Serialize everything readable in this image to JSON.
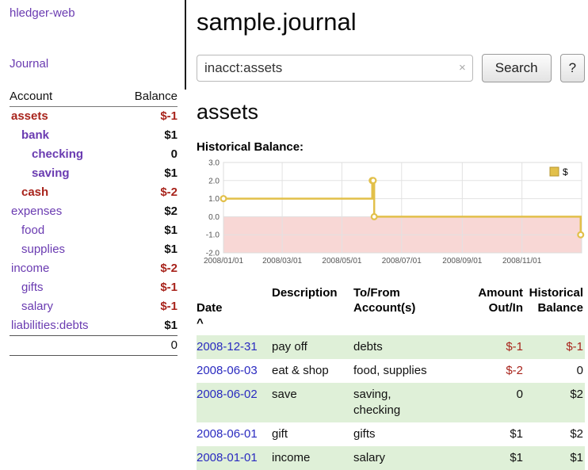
{
  "app": {
    "title": "hledger-web",
    "nav_journal": "Journal"
  },
  "sidebar": {
    "header": {
      "account": "Account",
      "balance": "Balance"
    },
    "accounts": [
      {
        "name": "assets",
        "balance": "$-1",
        "indent": 0,
        "bold": true,
        "neg": true,
        "neg_name": true
      },
      {
        "name": "bank",
        "balance": "$1",
        "indent": 1,
        "bold": true,
        "neg": false,
        "neg_name": false
      },
      {
        "name": "checking",
        "balance": "0",
        "indent": 2,
        "bold": true,
        "neg": false,
        "neg_name": false
      },
      {
        "name": "saving",
        "balance": "$1",
        "indent": 2,
        "bold": true,
        "neg": false,
        "neg_name": false
      },
      {
        "name": "cash",
        "balance": "$-2",
        "indent": 1,
        "bold": true,
        "neg": true,
        "neg_name": true
      },
      {
        "name": "expenses",
        "balance": "$2",
        "indent": 0,
        "bold": false,
        "neg": false,
        "neg_name": false
      },
      {
        "name": "food",
        "balance": "$1",
        "indent": 1,
        "bold": false,
        "neg": false,
        "neg_name": false
      },
      {
        "name": "supplies",
        "balance": "$1",
        "indent": 1,
        "bold": false,
        "neg": false,
        "neg_name": false
      },
      {
        "name": "income",
        "balance": "$-2",
        "indent": 0,
        "bold": false,
        "neg": true,
        "neg_name": false
      },
      {
        "name": "gifts",
        "balance": "$-1",
        "indent": 1,
        "bold": false,
        "neg": true,
        "neg_name": false
      },
      {
        "name": "salary",
        "balance": "$-1",
        "indent": 1,
        "bold": false,
        "neg": true,
        "neg_name": false
      },
      {
        "name": "liabilities:debts",
        "balance": "$1",
        "indent": 0,
        "bold": false,
        "neg": false,
        "neg_name": false
      }
    ],
    "total": "0"
  },
  "header": {
    "title": "sample.journal"
  },
  "search": {
    "value": "inacct:assets",
    "clear_icon": "×",
    "button": "Search",
    "help": "?"
  },
  "account_page": {
    "heading": "assets",
    "chart_label": "Historical Balance:"
  },
  "chart_data": {
    "type": "line",
    "step": true,
    "title": "Historical Balance",
    "xlabel": "",
    "ylabel": "",
    "x_range": [
      "2008/01/01",
      "2009/01/01"
    ],
    "ylim": [
      -2,
      3
    ],
    "yticks": [
      3,
      2,
      1,
      0,
      -1,
      -2
    ],
    "xticks": [
      "2008/01/01",
      "2008/03/01",
      "2008/05/01",
      "2008/07/01",
      "2008/09/01",
      "2008/11/01"
    ],
    "grid": true,
    "legend_position": "top-right",
    "negative_region_fill": "#f8d7d5",
    "series": [
      {
        "name": "$",
        "color": "#e2c04a",
        "points": [
          [
            "2008-01-01",
            1
          ],
          [
            "2008-06-01",
            2
          ],
          [
            "2008-06-02",
            2
          ],
          [
            "2008-06-03",
            0
          ],
          [
            "2008-12-31",
            -1
          ]
        ]
      }
    ]
  },
  "register": {
    "sort_indicator": "^",
    "columns": {
      "date": "Date",
      "description": "Description",
      "account": "To/From\nAccount(s)",
      "amount": "Amount\nOut/In",
      "balance": "Historical\nBalance"
    },
    "rows": [
      {
        "date": "2008-12-31",
        "description": "pay off",
        "account": "debts",
        "amount": "$-1",
        "balance": "$-1"
      },
      {
        "date": "2008-06-03",
        "description": "eat & shop",
        "account": "food, supplies",
        "amount": "$-2",
        "balance": "0"
      },
      {
        "date": "2008-06-02",
        "description": "save",
        "account": "saving,\nchecking",
        "amount": "0",
        "balance": "$2"
      },
      {
        "date": "2008-06-01",
        "description": "gift",
        "account": "gifts",
        "amount": "$1",
        "balance": "$2"
      },
      {
        "date": "2008-01-01",
        "description": "income",
        "account": "salary",
        "amount": "$1",
        "balance": "$1"
      }
    ]
  },
  "colors": {
    "link_purple": "#6a3bb1",
    "negative_red": "#a8241c",
    "date_link_blue": "#2a2ac0",
    "row_stripe_green": "#dff0d8",
    "chart_line_yellow": "#e2c04a",
    "chart_negative_fill": "#f8d7d5"
  }
}
